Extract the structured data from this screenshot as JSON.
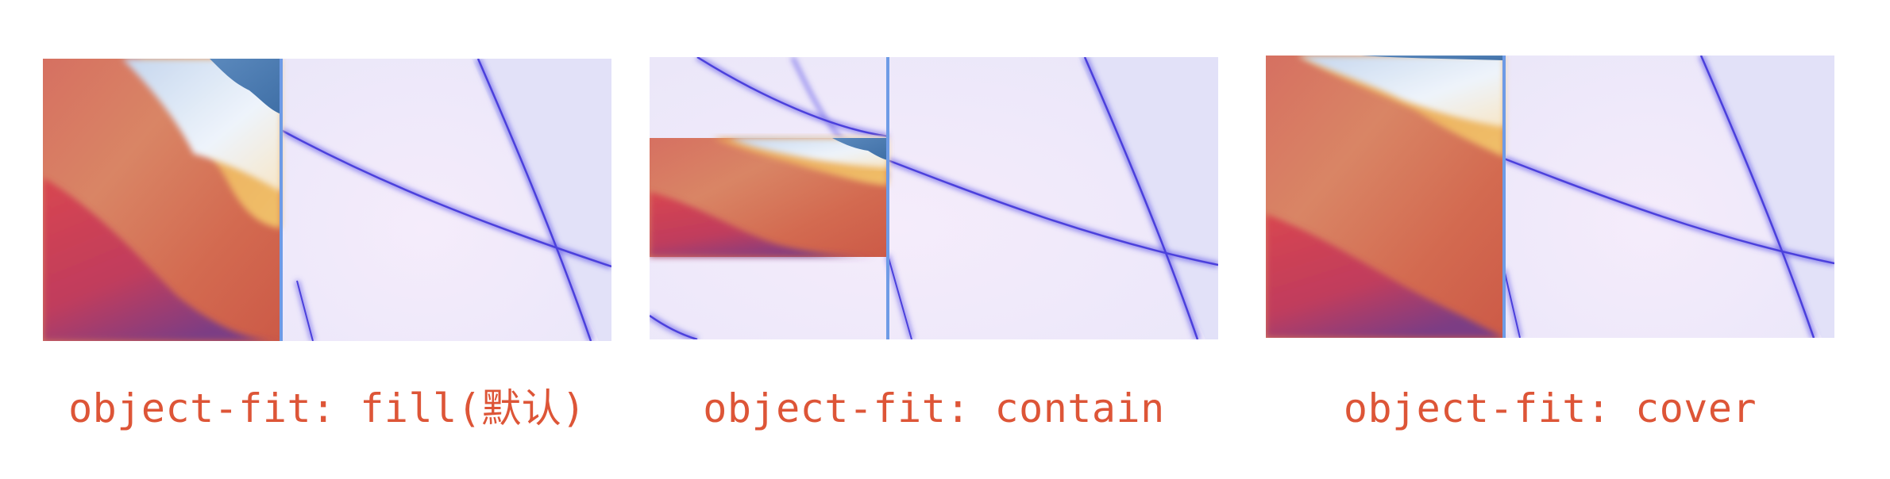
{
  "panels": [
    {
      "id": "fill",
      "caption": "object-fit: fill(默认)"
    },
    {
      "id": "contain",
      "caption": "object-fit: contain"
    },
    {
      "id": "cover",
      "caption": "object-fit: cover"
    }
  ],
  "colors": {
    "caption": "#dd5537",
    "frame_line": "#6e9be6",
    "wallpaper_background": "#e2e1f8",
    "wallpaper_curve": "#5146e0",
    "image_orange": "#d4624e",
    "image_red": "#d8464f",
    "image_purple": "#7c3c84",
    "image_yellow": "#ebb25f",
    "image_blue": "#4a7bb0"
  }
}
